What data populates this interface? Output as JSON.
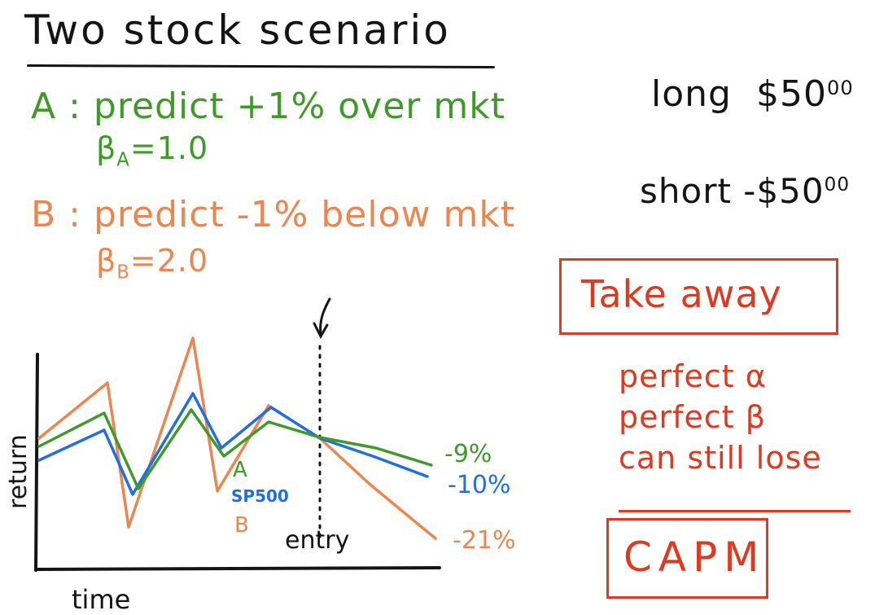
{
  "title": "Two stock scenario",
  "stock_a": {
    "line": "A : predict +1% over mkt",
    "beta_symbol": "β",
    "beta_sub": "A",
    "beta_value": "=1.0"
  },
  "stock_b": {
    "line": "B : predict -1% below mkt",
    "beta_symbol": "β",
    "beta_sub": "B",
    "beta_value": "=2.0"
  },
  "positions": {
    "long_label": "long",
    "long_amount": "$50",
    "long_cents": "00",
    "short_label": "short",
    "short_amount": "-$50",
    "short_cents": "00"
  },
  "takeaway": {
    "heading": "Take away",
    "line1": "perfect α",
    "line2": "perfect β",
    "line3": "can still lose",
    "capm": "CAPM"
  },
  "colors": {
    "stock_a": "#3f9a2a",
    "stock_b": "#ec8650",
    "sp500": "#1f6fe0",
    "ink": "#141414",
    "takeaway": "#de3a21"
  },
  "chart": {
    "ylabel": "return",
    "xlabel": "time",
    "entry_label": "entry",
    "series_labels": {
      "a": "A",
      "sp500": "SP500",
      "b": "B"
    },
    "end_labels": {
      "a": "-9%",
      "sp500": "-10%",
      "b": "-21%"
    }
  },
  "chart_data": {
    "type": "line",
    "xlabel": "time",
    "ylabel": "return",
    "annotation": "entry",
    "series": [
      {
        "name": "A",
        "end_value": "-9%"
      },
      {
        "name": "SP500",
        "end_value": "-10%"
      },
      {
        "name": "B",
        "end_value": "-21%"
      }
    ]
  }
}
